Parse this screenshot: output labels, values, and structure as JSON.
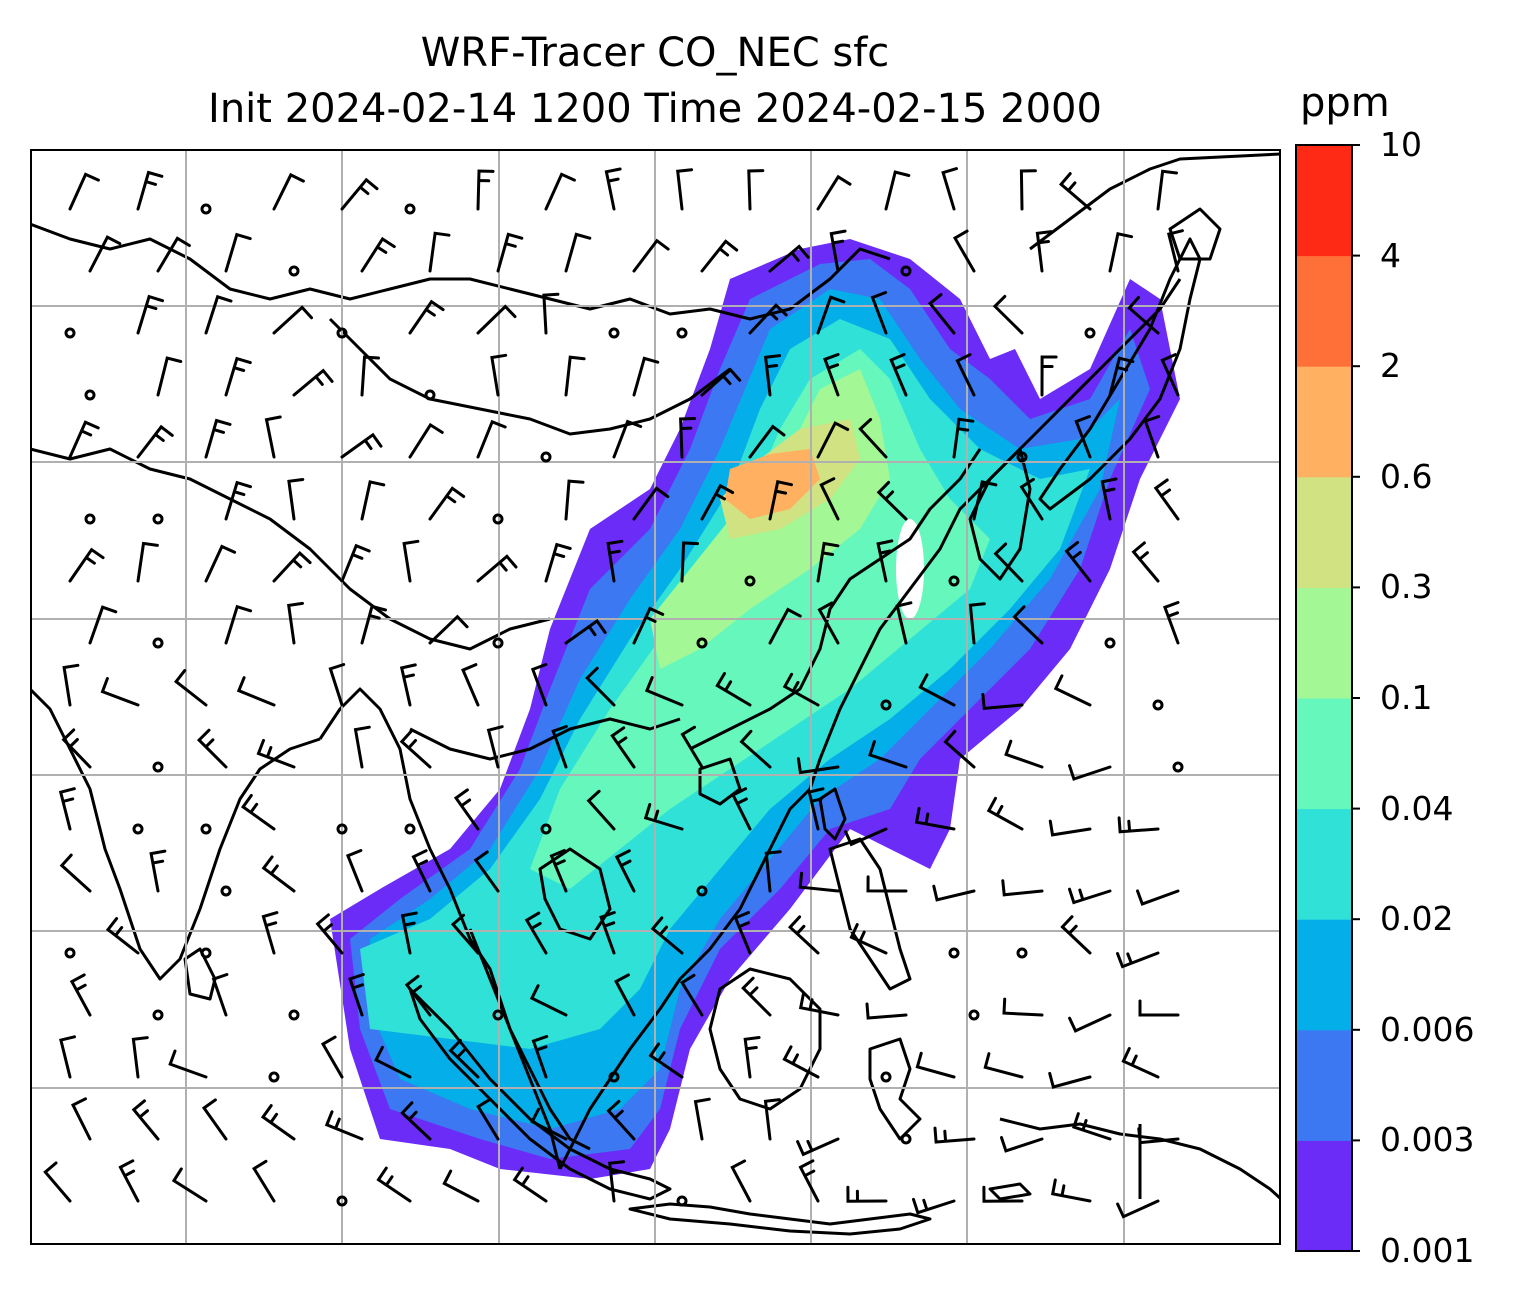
{
  "title": {
    "line1": "WRF-Tracer CO_NEC sfc",
    "line2": "Init 2024-02-14 1200 Time 2024-02-15 2000"
  },
  "colorbar": {
    "unit": "ppm",
    "levels": [
      "0.001",
      "0.003",
      "0.006",
      "0.02",
      "0.04",
      "0.1",
      "0.3",
      "0.6",
      "2",
      "4",
      "10"
    ],
    "colors": [
      "#6a2cf6",
      "#3b78f2",
      "#04aee8",
      "#2fe1d6",
      "#66f7bd",
      "#a3f794",
      "#d0e282",
      "#ffb060",
      "#ff7038",
      "#ff2a16"
    ]
  },
  "map": {
    "gridlines": "on",
    "gridline_color": "#b0b0b0",
    "features": [
      "coastlines",
      "country borders",
      "wind barbs",
      "tracer concentration shading"
    ]
  }
}
